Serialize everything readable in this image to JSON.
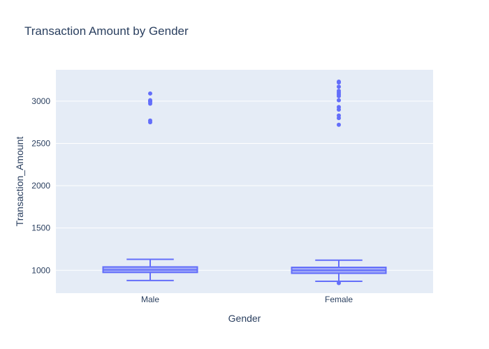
{
  "chart_data": {
    "type": "box",
    "title": "Transaction Amount by Gender",
    "xlabel": "Gender",
    "ylabel": "Transaction_Amount",
    "categories": [
      "Male",
      "Female"
    ],
    "ylim": [
      730,
      3370
    ],
    "yticks": [
      1000,
      1500,
      2000,
      2500,
      3000
    ],
    "grid": true,
    "legend": "none",
    "colors": {
      "plot_background": "#e5ecf6",
      "grid": "#ffffff",
      "box": "#636efa",
      "text": "#2a3f5f"
    },
    "boxes": [
      {
        "category": "Male",
        "lowerfence": 880,
        "q1": 975,
        "median": 1005,
        "q3": 1040,
        "upperfence": 1130,
        "outliers": [
          2750,
          2770,
          2970,
          2990,
          3000,
          3010,
          3090
        ]
      },
      {
        "category": "Female",
        "lowerfence": 870,
        "q1": 965,
        "median": 1000,
        "q3": 1035,
        "upperfence": 1120,
        "outliers": [
          850,
          2720,
          2800,
          2830,
          2900,
          2930,
          3010,
          3060,
          3080,
          3100,
          3120,
          3170,
          3220,
          3230
        ]
      }
    ]
  }
}
